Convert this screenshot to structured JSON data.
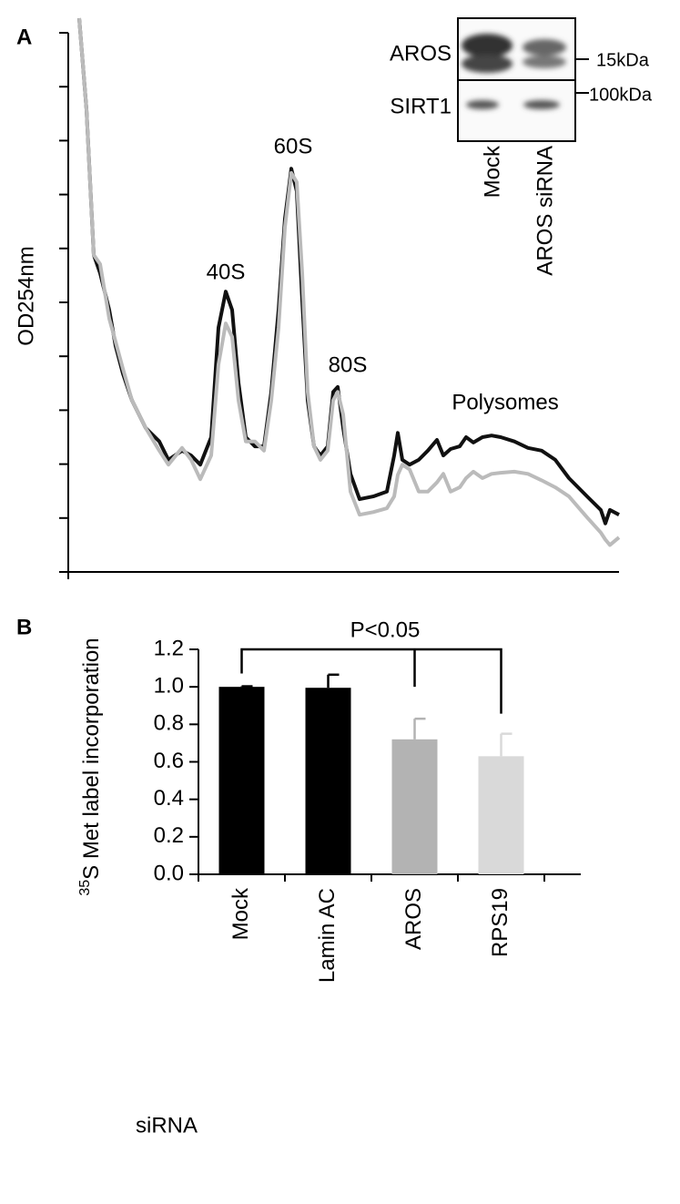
{
  "chart_data": [
    {
      "type": "line",
      "panel": "A",
      "ylabel": "OD254nm",
      "annotations": [
        "40S",
        "60S",
        "80S",
        "Polysomes"
      ],
      "blot": {
        "rows": [
          "AROS",
          "SIRT1"
        ],
        "markers": [
          "15kDa",
          "100kDa"
        ]
      },
      "x": [
        12,
        20,
        28,
        35,
        45,
        52,
        60,
        70,
        85,
        100,
        110,
        125,
        135,
        145,
        157,
        165,
        173,
        180,
        187,
        195,
        205,
        215,
        223,
        231,
        238,
        245,
        251,
        257,
        263,
        270,
        277,
        285,
        291,
        296,
        302,
        310,
        320,
        335,
        350,
        358,
        362,
        367,
        375,
        385,
        395,
        405,
        412,
        420,
        430,
        437,
        445,
        455,
        465,
        475,
        490,
        505,
        520,
        535,
        550,
        570,
        585,
        590,
        595,
        605
      ],
      "xlim": [
        0,
        605
      ],
      "ylim": [
        0,
        10
      ],
      "yticks": [
        0,
        1,
        2,
        3,
        4,
        5,
        6,
        7,
        8,
        9,
        10
      ],
      "series": [
        {
          "name": "Mock",
          "color": "#111111",
          "values": [
            10.27,
            8.58,
            5.88,
            5.54,
            4.86,
            4.19,
            3.68,
            3.18,
            2.67,
            2.42,
            2.08,
            2.25,
            2.16,
            1.99,
            2.5,
            4.53,
            5.2,
            4.86,
            3.51,
            2.5,
            2.33,
            2.33,
            3.34,
            4.86,
            6.55,
            7.48,
            7.06,
            5.03,
            3.18,
            2.33,
            2.16,
            2.33,
            3.34,
            3.43,
            2.67,
            1.82,
            1.35,
            1.4,
            1.49,
            2.16,
            2.58,
            2.08,
            1.99,
            2.08,
            2.25,
            2.45,
            2.16,
            2.28,
            2.33,
            2.5,
            2.4,
            2.5,
            2.53,
            2.5,
            2.42,
            2.3,
            2.25,
            2.08,
            1.74,
            1.4,
            1.15,
            0.9,
            1.15,
            1.06
          ]
        },
        {
          "name": "AROS siRNA",
          "color": "#bbbbbb",
          "values": [
            10.27,
            8.58,
            5.88,
            5.71,
            4.7,
            4.27,
            3.77,
            3.18,
            2.67,
            2.25,
            1.99,
            2.3,
            2.08,
            1.72,
            2.16,
            3.85,
            4.61,
            4.36,
            3.18,
            2.42,
            2.42,
            2.25,
            3.18,
            4.53,
            6.39,
            7.4,
            7.23,
            5.54,
            3.34,
            2.33,
            2.08,
            2.25,
            3.18,
            3.34,
            2.92,
            1.49,
            1.06,
            1.11,
            1.18,
            1.4,
            1.8,
            1.99,
            1.9,
            1.49,
            1.49,
            1.66,
            1.82,
            1.49,
            1.57,
            1.74,
            1.86,
            1.74,
            1.82,
            1.84,
            1.86,
            1.82,
            1.7,
            1.57,
            1.4,
            1.01,
            0.73,
            0.6,
            0.5,
            0.64
          ]
        }
      ]
    },
    {
      "type": "bar",
      "panel": "B",
      "ylabel_superscript": "35",
      "ylabel": "S Met label incorporation",
      "xlabel": "siRNA",
      "categories": [
        "Mock",
        "Lamin AC",
        "AROS",
        "RPS19"
      ],
      "values": [
        1.0,
        0.995,
        0.72,
        0.63
      ],
      "errors": [
        0.003,
        0.07,
        0.11,
        0.12
      ],
      "colors": [
        "#000000",
        "#000000",
        "#b3b3b3",
        "#d9d9d9"
      ],
      "ylim": [
        0,
        1.2
      ],
      "yticks": [
        {
          "value": 0,
          "label": "0.0"
        },
        0.2,
        0.4,
        0.6,
        0.8,
        {
          "value": 1,
          "label": "1.0"
        },
        1.2
      ],
      "significance": "P<0.05"
    }
  ]
}
